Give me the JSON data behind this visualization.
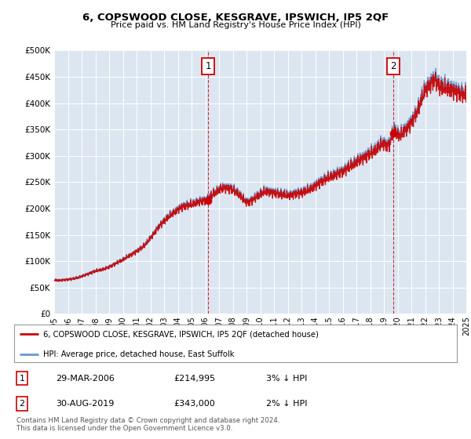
{
  "title": "6, COPSWOOD CLOSE, KESGRAVE, IPSWICH, IP5 2QF",
  "subtitle": "Price paid vs. HM Land Registry's House Price Index (HPI)",
  "plot_bg_color": "#dce6f1",
  "ylim": [
    0,
    500000
  ],
  "yticks": [
    0,
    50000,
    100000,
    150000,
    200000,
    250000,
    300000,
    350000,
    400000,
    450000,
    500000
  ],
  "sale1_year": 2006.22,
  "sale1_price": 214995,
  "sale2_year": 2019.67,
  "sale2_price": 343000,
  "legend_line1": "6, COPSWOOD CLOSE, KESGRAVE, IPSWICH, IP5 2QF (detached house)",
  "legend_line2": "HPI: Average price, detached house, East Suffolk",
  "table_row1": [
    "1",
    "29-MAR-2006",
    "£214,995",
    "3% ↓ HPI"
  ],
  "table_row2": [
    "2",
    "30-AUG-2019",
    "£343,000",
    "2% ↓ HPI"
  ],
  "footnote": "Contains HM Land Registry data © Crown copyright and database right 2024.\nThis data is licensed under the Open Government Licence v3.0.",
  "line_color_red": "#cc0000",
  "line_color_blue": "#6699cc",
  "x_start_year": 1995,
  "x_end_year": 2025,
  "hpi_key_points": [
    [
      1995.0,
      65000
    ],
    [
      1995.5,
      64500
    ],
    [
      1996.0,
      66000
    ],
    [
      1996.5,
      68000
    ],
    [
      1997.0,
      72000
    ],
    [
      1997.5,
      77000
    ],
    [
      1998.0,
      82000
    ],
    [
      1998.5,
      85000
    ],
    [
      1999.0,
      90000
    ],
    [
      1999.5,
      97000
    ],
    [
      2000.0,
      104000
    ],
    [
      2000.5,
      112000
    ],
    [
      2001.0,
      120000
    ],
    [
      2001.5,
      130000
    ],
    [
      2002.0,
      145000
    ],
    [
      2002.5,
      163000
    ],
    [
      2003.0,
      178000
    ],
    [
      2003.5,
      190000
    ],
    [
      2004.0,
      200000
    ],
    [
      2004.5,
      207000
    ],
    [
      2005.0,
      210000
    ],
    [
      2005.5,
      215000
    ],
    [
      2006.0,
      218000
    ],
    [
      2006.22,
      221500
    ],
    [
      2006.5,
      228000
    ],
    [
      2007.0,
      238000
    ],
    [
      2007.5,
      242000
    ],
    [
      2008.0,
      238000
    ],
    [
      2008.5,
      228000
    ],
    [
      2009.0,
      215000
    ],
    [
      2009.5,
      220000
    ],
    [
      2010.0,
      230000
    ],
    [
      2010.5,
      235000
    ],
    [
      2011.0,
      232000
    ],
    [
      2011.5,
      230000
    ],
    [
      2012.0,
      228000
    ],
    [
      2012.5,
      230000
    ],
    [
      2013.0,
      233000
    ],
    [
      2013.5,
      238000
    ],
    [
      2014.0,
      246000
    ],
    [
      2014.5,
      255000
    ],
    [
      2015.0,
      262000
    ],
    [
      2015.5,
      268000
    ],
    [
      2016.0,
      274000
    ],
    [
      2016.5,
      283000
    ],
    [
      2017.0,
      292000
    ],
    [
      2017.5,
      300000
    ],
    [
      2018.0,
      308000
    ],
    [
      2018.5,
      318000
    ],
    [
      2019.0,
      327000
    ],
    [
      2019.5,
      333000
    ],
    [
      2019.67,
      350000
    ],
    [
      2020.0,
      345000
    ],
    [
      2020.5,
      352000
    ],
    [
      2021.0,
      368000
    ],
    [
      2021.5,
      395000
    ],
    [
      2022.0,
      430000
    ],
    [
      2022.5,
      445000
    ],
    [
      2022.75,
      450000
    ],
    [
      2023.0,
      440000
    ],
    [
      2023.5,
      435000
    ],
    [
      2024.0,
      430000
    ],
    [
      2024.5,
      425000
    ],
    [
      2025.0,
      420000
    ]
  ]
}
